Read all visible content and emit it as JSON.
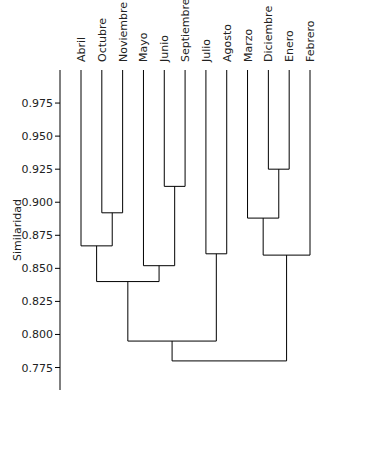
{
  "chart_data": {
    "type": "dendrogram",
    "y_label": "Similaridad",
    "leaves": [
      "Abril",
      "Octubre",
      "Noviembre",
      "Mayo",
      "Junio",
      "Septiembre",
      "Julio",
      "Agosto",
      "Marzo",
      "Diciembre",
      "Enero",
      "Febrero"
    ],
    "merges": [
      {
        "children": [
          1,
          2
        ],
        "value": 0.892
      },
      {
        "children": [
          0,
          12
        ],
        "value": 0.867
      },
      {
        "children": [
          4,
          5
        ],
        "value": 0.912
      },
      {
        "children": [
          3,
          14
        ],
        "value": 0.852
      },
      {
        "children": [
          13,
          15
        ],
        "value": 0.84
      },
      {
        "children": [
          6,
          7
        ],
        "value": 0.861
      },
      {
        "children": [
          16,
          17
        ],
        "value": 0.795
      },
      {
        "children": [
          9,
          10
        ],
        "value": 0.925
      },
      {
        "children": [
          8,
          19
        ],
        "value": 0.888
      },
      {
        "children": [
          20,
          11
        ],
        "value": 0.86
      },
      {
        "children": [
          18,
          21
        ],
        "value": 0.78
      }
    ],
    "ylim": [
      0.758,
      1.0
    ],
    "yticks": [
      0.975,
      {
        "value": 0.95,
        "label": "0.950"
      },
      0.925,
      {
        "value": 0.9,
        "label": "0.900"
      },
      0.875,
      {
        "value": 0.85,
        "label": "0.850"
      },
      0.825,
      {
        "value": 0.8,
        "label": "0.800"
      },
      0.775
    ],
    "color": "#000000"
  }
}
